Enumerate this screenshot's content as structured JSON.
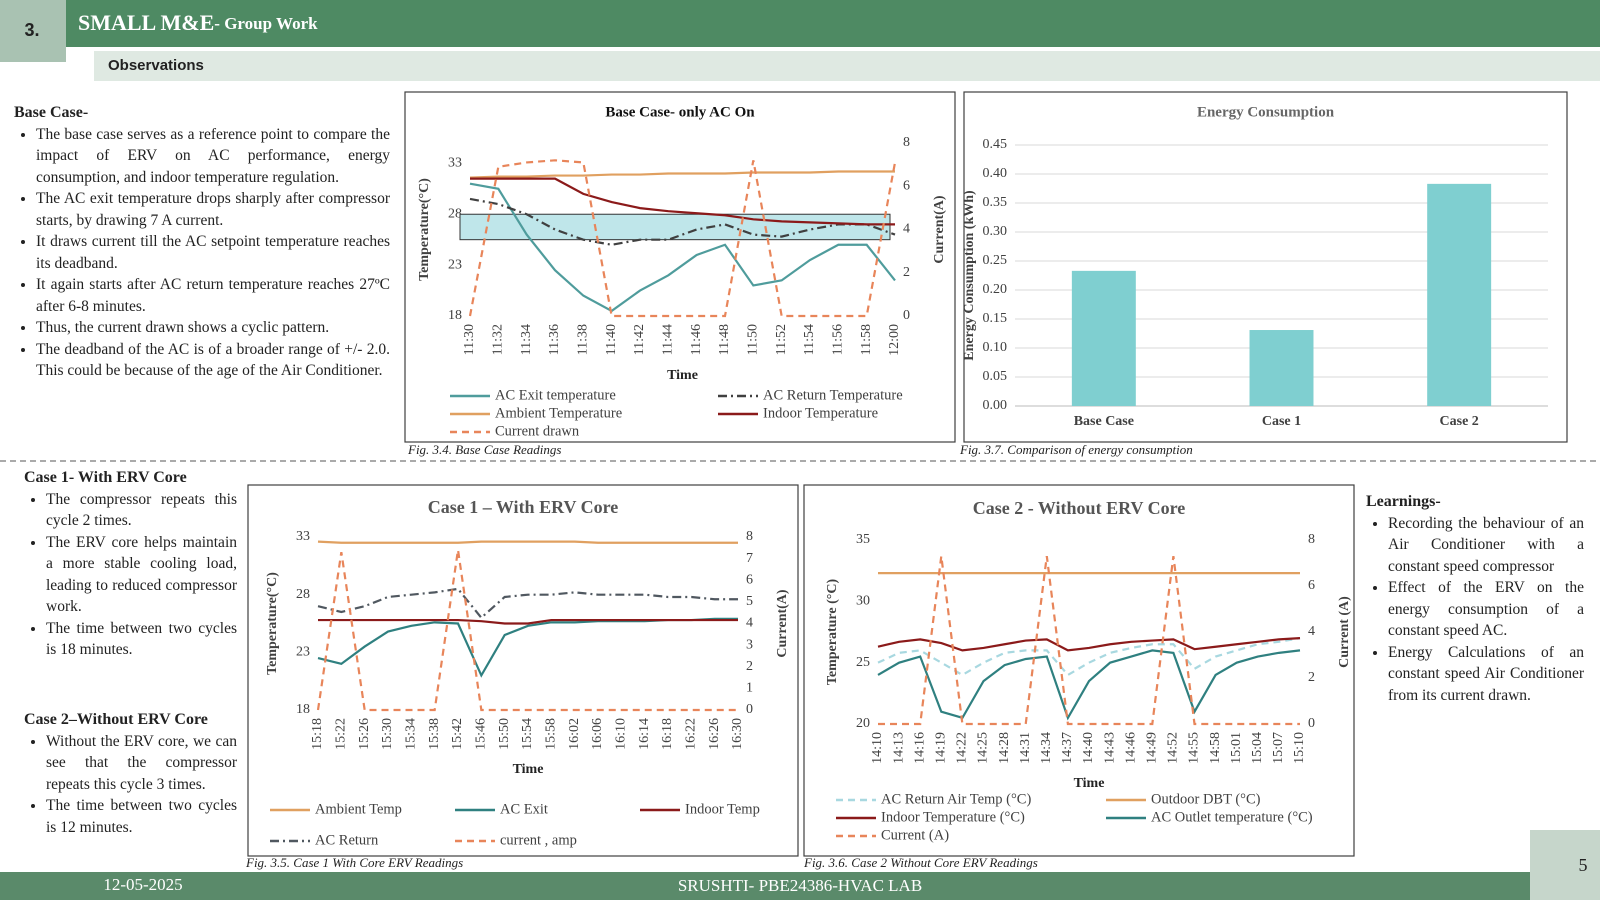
{
  "header": {
    "number": "3.",
    "title": "SMALL  M&E",
    "subtitle": "- Group Work",
    "section": "Observations"
  },
  "base_case": {
    "heading": "Base Case-",
    "bullets": [
      "The base case serves as a reference point to compare the impact of ERV on AC performance, energy consumption, and indoor temperature regulation.",
      "The AC exit temperature drops sharply after compressor starts, by drawing 7 A current.",
      "It draws current till the AC setpoint temperature reaches its deadband.",
      "It again starts after AC return temperature reaches 27ºC after 6-8 minutes.",
      "Thus, the current drawn shows a cyclic pattern.",
      "The deadband of the AC is of a broader range of +/- 2.0. This could be because of the age of the Air Conditioner."
    ]
  },
  "case1": {
    "heading": "Case 1- With ERV Core",
    "bullets": [
      "The compressor repeats this cycle 2 times.",
      "The ERV core helps maintain a more stable cooling load, leading to reduced compressor work.",
      "The time between two cycles is 18 minutes."
    ]
  },
  "case2": {
    "heading": "Case 2–Without ERV Core",
    "bullets": [
      "Without the ERV core, we can see that the compressor repeats this cycle 3 times.",
      "The time between two cycles is 12 minutes."
    ]
  },
  "learnings": {
    "heading": "Learnings-",
    "bullets": [
      "Recording the behaviour of an Air Conditioner with a constant speed compressor",
      "Effect of the ERV on the energy consumption of a constant speed AC.",
      "Energy Calculations of an constant speed Air Conditioner from its current drawn."
    ]
  },
  "chart_data": [
    {
      "type": "line",
      "title": "Base Case- only AC On",
      "xlabel": "Time",
      "ylabel": "Temperature(°C)",
      "y2label": "Current(A)",
      "caption": "Fig. 3.4. Base Case Readings",
      "categories": [
        "11:30",
        "11:32",
        "11:34",
        "11:36",
        "11:38",
        "11:40",
        "11:42",
        "11:44",
        "11:46",
        "11:48",
        "11:50",
        "11:52",
        "11:54",
        "11:56",
        "11:58",
        "12:00"
      ],
      "ylim": [
        18,
        35
      ],
      "yticks": [
        18,
        23,
        28,
        33
      ],
      "y2lim": [
        0,
        8
      ],
      "y2ticks": [
        0,
        2,
        4,
        6,
        8
      ],
      "grid": false,
      "deadband": [
        25.5,
        28
      ],
      "deadband_color": "#bfe6ea",
      "series": [
        {
          "name": "AC Exit temperature",
          "color": "#4f9c9c",
          "style": "solid",
          "values": [
            31,
            30.5,
            26,
            22.5,
            20,
            18.5,
            20.5,
            22,
            24,
            25,
            21,
            21.5,
            23.5,
            25,
            25,
            21.5
          ]
        },
        {
          "name": "AC Return Temperature",
          "color": "#404040",
          "style": "dashdot",
          "values": [
            29.5,
            29,
            28,
            26.5,
            25.5,
            25,
            25.5,
            25.5,
            26.5,
            27,
            26,
            25.8,
            26.5,
            27,
            27,
            26
          ]
        },
        {
          "name": "Ambient Temperature",
          "color": "#e0a060",
          "style": "solid",
          "values": [
            31.6,
            31.7,
            31.7,
            31.8,
            31.8,
            31.9,
            31.9,
            32,
            32,
            32,
            32.1,
            32.1,
            32.1,
            32.2,
            32.2,
            32.2
          ]
        },
        {
          "name": "Indoor Temperature",
          "color": "#8b1a1a",
          "style": "solid",
          "values": [
            31.5,
            31.5,
            31.5,
            31.5,
            30,
            29.2,
            28.6,
            28.3,
            28.1,
            27.9,
            27.5,
            27.3,
            27.2,
            27.1,
            27,
            27
          ]
        },
        {
          "name": "Current drawn",
          "color": "#e8855a",
          "style": "dashed",
          "axis": "y2",
          "values": [
            0,
            6.9,
            7.1,
            7.2,
            7.1,
            0,
            0,
            0,
            0,
            0,
            7.2,
            0,
            0,
            0,
            0,
            7.1
          ]
        }
      ]
    },
    {
      "type": "bar",
      "title": "Energy  Consumption",
      "ylabel": "Energy  Consumption  (kWh)",
      "caption": "Fig. 3.7. Comparison of energy consumption",
      "categories": [
        "Base Case",
        "Case 1",
        "Case 2"
      ],
      "values": [
        0.233,
        0.131,
        0.383
      ],
      "color": "#7fcfd0",
      "ylim": [
        0,
        0.45
      ],
      "yticks": [
        {
          "value": 0,
          "label": "0.00"
        },
        {
          "value": 0.05,
          "label": "0.05"
        },
        {
          "value": 0.1,
          "label": "0.10"
        },
        {
          "value": 0.15,
          "label": "0.15"
        },
        {
          "value": 0.2,
          "label": "0.20"
        },
        {
          "value": 0.25,
          "label": "0.25"
        },
        {
          "value": 0.3,
          "label": "0.30"
        },
        {
          "value": 0.35,
          "label": "0.35"
        },
        {
          "value": 0.4,
          "label": "0.40"
        },
        {
          "value": 0.45,
          "label": "0.45"
        }
      ],
      "grid": true
    },
    {
      "type": "line",
      "title": "Case 1 – With ERV Core",
      "xlabel": "Time",
      "ylabel": "Temperature(°C)",
      "y2label": "Current(A)",
      "caption": "Fig. 3.5. Case 1 With Core ERV Readings",
      "categories": [
        "15:18",
        "15:22",
        "15:26",
        "15:30",
        "15:34",
        "15:38",
        "15:42",
        "15:46",
        "15:50",
        "15:54",
        "15:58",
        "16:02",
        "16:06",
        "16:10",
        "16:14",
        "16:18",
        "16:22",
        "16:26",
        "16:30"
      ],
      "ylim": [
        18,
        33
      ],
      "yticks": [
        18,
        23,
        28,
        33
      ],
      "y2lim": [
        0,
        8
      ],
      "y2ticks": [
        0,
        1,
        2,
        3,
        4,
        5,
        6,
        7,
        8
      ],
      "grid": false,
      "series": [
        {
          "name": "Ambient Temp",
          "color": "#e0a060",
          "style": "solid",
          "values": [
            32.6,
            32.5,
            32.5,
            32.5,
            32.5,
            32.5,
            32.5,
            32.6,
            32.6,
            32.6,
            32.6,
            32.6,
            32.5,
            32.5,
            32.5,
            32.5,
            32.5,
            32.5,
            32.5
          ]
        },
        {
          "name": "AC Exit",
          "color": "#2f8080",
          "style": "solid",
          "values": [
            22.5,
            22,
            23.5,
            24.8,
            25.3,
            25.6,
            25.5,
            21,
            24.5,
            25.3,
            25.6,
            25.6,
            25.7,
            25.7,
            25.7,
            25.8,
            25.8,
            25.9,
            25.9
          ]
        },
        {
          "name": "Indoor Temp",
          "color": "#8b1a1a",
          "style": "solid",
          "values": [
            25.8,
            25.8,
            25.8,
            25.8,
            25.8,
            25.8,
            25.8,
            25.7,
            25.5,
            25.5,
            25.8,
            25.8,
            25.8,
            25.8,
            25.8,
            25.8,
            25.8,
            25.8,
            25.8
          ]
        },
        {
          "name": "AC Return",
          "color": "#505860",
          "style": "dashdot",
          "values": [
            27,
            26.5,
            27,
            27.8,
            28,
            28.2,
            28.5,
            26,
            27.8,
            28,
            28,
            28.2,
            28,
            28,
            28,
            27.8,
            27.8,
            27.6,
            27.6
          ]
        },
        {
          "name": "current , amp",
          "color": "#e8855a",
          "style": "dashed",
          "axis": "y2",
          "values": [
            0,
            7.3,
            0,
            0,
            0,
            0,
            7.4,
            0,
            0,
            0,
            0,
            0,
            0,
            0,
            0,
            0,
            0,
            0,
            0
          ]
        }
      ]
    },
    {
      "type": "line",
      "title": "Case 2 - Without  ERV Core",
      "xlabel": "Time",
      "ylabel": "Temperature  (°C)",
      "y2label": "Current  (A)",
      "caption": "Fig. 3.6. Case 2 Without Core ERV Readings",
      "categories": [
        "14:10",
        "14:13",
        "14:16",
        "14:19",
        "14:22",
        "14:25",
        "14:28",
        "14:31",
        "14:34",
        "14:37",
        "14:40",
        "14:43",
        "14:46",
        "14:49",
        "14:52",
        "14:55",
        "14:58",
        "15:01",
        "15:04",
        "15:07",
        "15:10"
      ],
      "ylim": [
        20,
        35
      ],
      "yticks": [
        20,
        25,
        30,
        35
      ],
      "y2lim": [
        0,
        8
      ],
      "y2ticks": [
        0,
        2,
        4,
        6,
        8
      ],
      "grid": false,
      "series": [
        {
          "name": "AC Return Air Temp (°C)",
          "color": "#a8d8e0",
          "style": "dashed",
          "values": [
            25,
            25.8,
            26,
            25,
            24,
            25,
            25.8,
            26,
            26,
            24,
            25,
            25.8,
            26.2,
            26.5,
            26.5,
            24.5,
            25.5,
            26,
            26.5,
            26.7,
            27
          ]
        },
        {
          "name": "Outdoor DBT (°C)",
          "color": "#e0a060",
          "style": "solid",
          "values": [
            32.3,
            32.3,
            32.3,
            32.3,
            32.3,
            32.3,
            32.3,
            32.3,
            32.3,
            32.3,
            32.3,
            32.3,
            32.3,
            32.3,
            32.3,
            32.3,
            32.3,
            32.3,
            32.3,
            32.3,
            32.3
          ]
        },
        {
          "name": "Indoor Temperature (°C)",
          "color": "#8b1a1a",
          "style": "solid",
          "values": [
            26.3,
            26.7,
            26.9,
            26.6,
            26,
            26.2,
            26.5,
            26.8,
            26.9,
            26,
            26.2,
            26.5,
            26.7,
            26.8,
            26.9,
            26.1,
            26.3,
            26.5,
            26.7,
            26.9,
            27
          ]
        },
        {
          "name": "AC Outlet temperature (°C)",
          "color": "#2f8080",
          "style": "solid",
          "values": [
            24,
            25,
            25.5,
            21,
            20.5,
            23.5,
            24.8,
            25.3,
            25.5,
            20.5,
            23.5,
            25,
            25.5,
            26,
            25.8,
            21,
            24,
            25,
            25.5,
            25.8,
            26
          ]
        },
        {
          "name": "Current (A)",
          "color": "#e8855a",
          "style": "dashed",
          "axis": "y2",
          "values": [
            0,
            0,
            0,
            7.3,
            0,
            0,
            0,
            0,
            7.3,
            0,
            0,
            0,
            0,
            0,
            7.3,
            0,
            0,
            0,
            0,
            0,
            0
          ]
        }
      ]
    }
  ],
  "footer": {
    "date": "12-05-2025",
    "center": "SRUSHTI- PBE24386-HVAC  LAB",
    "page": "5"
  }
}
